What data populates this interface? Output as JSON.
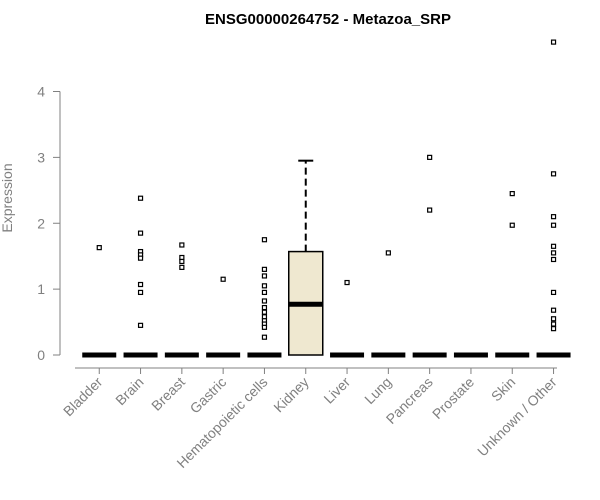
{
  "chart_data": {
    "type": "box",
    "title": "ENSG00000264752 - Metazoa_SRP",
    "xlabel": "",
    "ylabel": "Expression",
    "ylim": [
      0,
      4.8
    ],
    "yticks": [
      0,
      1,
      2,
      3,
      4
    ],
    "grid": false,
    "colors": {
      "highlight_box": "#efe8d0",
      "axis": "#808080",
      "marks": "#000000"
    },
    "categories": [
      "Bladder",
      "Brain",
      "Breast",
      "Gastric",
      "Hematopoietic cells",
      "Kidney",
      "Liver",
      "Lung",
      "Pancreas",
      "Prostate",
      "Skin",
      "Unknown / Other"
    ],
    "boxes": [
      {
        "category": "Bladder",
        "min": 0,
        "q1": 0,
        "median": 0,
        "q3": 0,
        "max": 0,
        "outliers": [
          1.63
        ]
      },
      {
        "category": "Brain",
        "min": 0,
        "q1": 0,
        "median": 0,
        "q3": 0,
        "max": 0,
        "outliers": [
          2.38,
          1.85,
          1.57,
          1.52,
          1.47,
          1.07,
          0.95,
          0.45
        ]
      },
      {
        "category": "Breast",
        "min": 0,
        "q1": 0,
        "median": 0,
        "q3": 0,
        "max": 0,
        "outliers": [
          1.67,
          1.48,
          1.42,
          1.33
        ]
      },
      {
        "category": "Gastric",
        "min": 0,
        "q1": 0,
        "median": 0,
        "q3": 0,
        "max": 0,
        "outliers": [
          1.15
        ]
      },
      {
        "category": "Hematopoietic cells",
        "min": 0,
        "q1": 0,
        "median": 0,
        "q3": 0,
        "max": 0,
        "outliers": [
          1.75,
          1.3,
          1.2,
          1.05,
          0.95,
          0.82,
          0.72,
          0.65,
          0.58,
          0.52,
          0.47,
          0.42,
          0.27
        ]
      },
      {
        "category": "Kidney",
        "min": 0,
        "q1": 0,
        "median": 0.77,
        "q3": 1.57,
        "max": 2.95,
        "outliers": []
      },
      {
        "category": "Liver",
        "min": 0,
        "q1": 0,
        "median": 0,
        "q3": 0,
        "max": 0,
        "outliers": [
          1.1
        ]
      },
      {
        "category": "Lung",
        "min": 0,
        "q1": 0,
        "median": 0,
        "q3": 0,
        "max": 0,
        "outliers": [
          1.55
        ]
      },
      {
        "category": "Pancreas",
        "min": 0,
        "q1": 0,
        "median": 0,
        "q3": 0,
        "max": 0,
        "outliers": [
          3.0,
          2.2
        ]
      },
      {
        "category": "Prostate",
        "min": 0,
        "q1": 0,
        "median": 0,
        "q3": 0,
        "max": 0,
        "outliers": []
      },
      {
        "category": "Skin",
        "min": 0,
        "q1": 0,
        "median": 0,
        "q3": 0,
        "max": 0,
        "outliers": [
          2.45,
          1.97
        ]
      },
      {
        "category": "Unknown / Other",
        "min": 0,
        "q1": 0,
        "median": 0,
        "q3": 0,
        "max": 0,
        "outliers": [
          4.75,
          2.75,
          2.1,
          1.97,
          1.65,
          1.55,
          1.45,
          0.95,
          0.68,
          0.55,
          0.47,
          0.4
        ]
      }
    ]
  }
}
